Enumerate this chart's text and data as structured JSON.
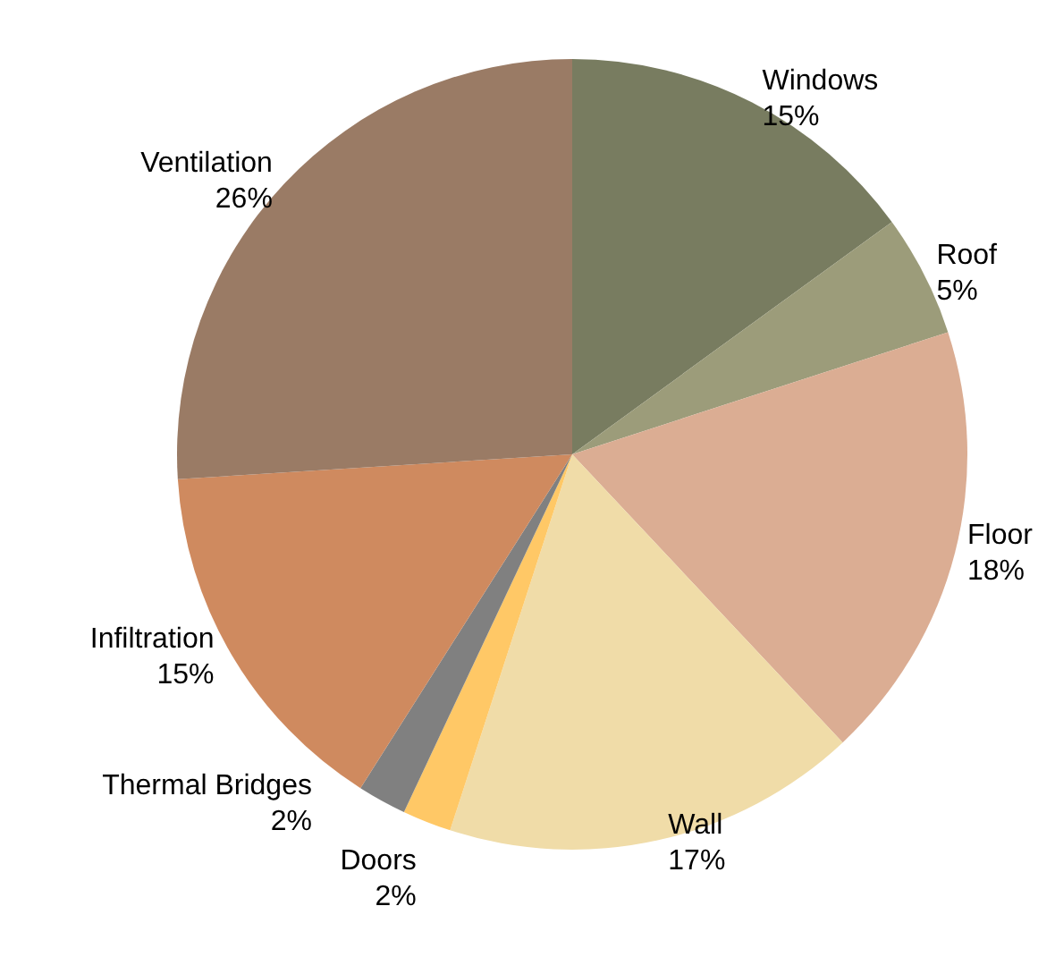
{
  "chart_data": {
    "type": "pie",
    "categories": [
      "Windows",
      "Roof",
      "Floor",
      "Wall",
      "Doors",
      "Thermal Bridges",
      "Infiltration",
      "Ventilation"
    ],
    "values": [
      15,
      5,
      18,
      17,
      2,
      2,
      15,
      26
    ],
    "colors": [
      "#787c60",
      "#9c9c7a",
      "#dbad93",
      "#f0dca8",
      "#ffc866",
      "#808080",
      "#cf8a5f",
      "#9a7b65"
    ],
    "value_labels": [
      "15%",
      "5%",
      "18%",
      "17%",
      "2%",
      "2%",
      "15%",
      "26%"
    ],
    "legend": false
  }
}
